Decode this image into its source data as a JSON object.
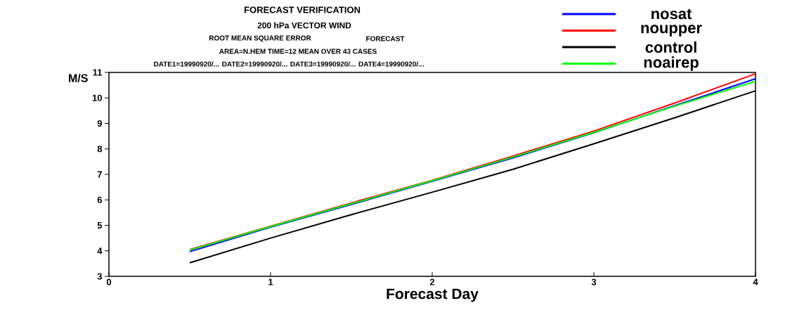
{
  "chart_data": {
    "type": "line",
    "title": "FORECAST VERIFICATION",
    "subtitle": "200 hPa VECTOR WIND",
    "annotations": [
      "ROOT MEAN SQUARE ERROR",
      "FORECAST",
      "AREA=N.HEM    TIME=12    MEAN OVER  43 CASES",
      "DATE1=19990920/... DATE2=19990920/... DATE3=19990920/... DATE4=19990920/..."
    ],
    "xlabel": "Forecast Day",
    "ylabel": "M/S",
    "x": [
      0.5,
      1,
      1.5,
      2,
      2.5,
      3,
      3.5,
      4
    ],
    "series": [
      {
        "name": "nosat",
        "color": "#0000ff",
        "values": [
          3.97,
          4.93,
          5.82,
          6.73,
          7.65,
          8.63,
          9.7,
          10.75
        ]
      },
      {
        "name": "noupper",
        "color": "#ff0000",
        "values": [
          4.05,
          4.97,
          5.88,
          6.77,
          7.72,
          8.7,
          9.8,
          10.95
        ]
      },
      {
        "name": "control",
        "color": "#000000",
        "values": [
          3.53,
          4.5,
          5.42,
          6.3,
          7.2,
          8.2,
          9.22,
          10.28
        ]
      },
      {
        "name": "noairep",
        "color": "#00ff00",
        "values": [
          4.03,
          4.95,
          5.85,
          6.75,
          7.68,
          8.65,
          9.68,
          10.65
        ]
      }
    ],
    "xlim": [
      0,
      4
    ],
    "ylim": [
      3,
      11
    ],
    "xticks": [
      0,
      1,
      2,
      3,
      4
    ],
    "yticks": [
      3,
      4,
      5,
      6,
      7,
      8,
      9,
      10,
      11
    ],
    "legend": "top right",
    "line_style": "solid"
  }
}
